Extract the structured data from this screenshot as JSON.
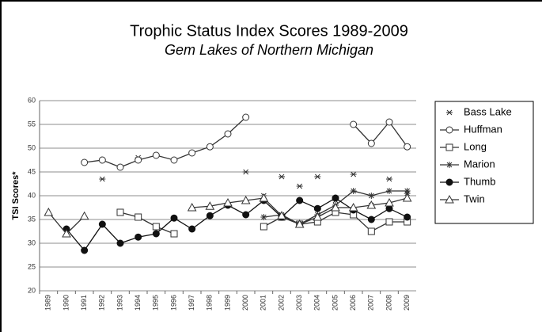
{
  "chart_data": {
    "type": "line",
    "title": "Trophic Status Index Scores 1989-2009",
    "subtitle": "Gem Lakes of Northern Michigan",
    "y_label": "TSI Scores*",
    "categories": [
      "1989",
      "1990",
      "1991",
      "1992",
      "1993",
      "1994",
      "1995",
      "1996",
      "1997",
      "1998",
      "1999",
      "2000",
      "2001",
      "2002",
      "2003",
      "2004",
      "2005",
      "2006",
      "2007",
      "2008",
      "2009"
    ],
    "ylim": [
      20,
      60
    ],
    "yticks": [
      20,
      25,
      30,
      35,
      40,
      45,
      50,
      55,
      60
    ],
    "grid": true,
    "legend": "right",
    "series": [
      {
        "name": "Bass Lake",
        "color": "#333333",
        "marker": "asterisk",
        "line": false,
        "values": [
          null,
          null,
          null,
          43.5,
          null,
          48,
          null,
          null,
          null,
          null,
          null,
          45,
          40,
          44,
          42,
          44,
          39,
          44.5,
          38,
          43.5,
          40.5
        ]
      },
      {
        "name": "Huffman",
        "color": "#333333",
        "marker": "circle-open",
        "line": true,
        "values": [
          null,
          null,
          47,
          47.5,
          46,
          47.5,
          48.5,
          47.5,
          49,
          50.3,
          53,
          56.5,
          null,
          null,
          null,
          null,
          null,
          55,
          51,
          55.5,
          50.3
        ]
      },
      {
        "name": "Long",
        "color": "#333333",
        "marker": "square-open",
        "line": true,
        "values": [
          null,
          null,
          null,
          null,
          36.5,
          35.5,
          33.5,
          32,
          null,
          null,
          null,
          null,
          33.5,
          35.5,
          34,
          34.5,
          36.5,
          36,
          32.5,
          34.5,
          34.5
        ]
      },
      {
        "name": "Marion",
        "color": "#333333",
        "marker": "star",
        "line": true,
        "values": [
          null,
          null,
          null,
          null,
          null,
          null,
          null,
          null,
          null,
          null,
          null,
          null,
          35.5,
          36,
          34,
          36,
          38,
          41,
          40,
          41,
          41
        ]
      },
      {
        "name": "Thumb",
        "color": "#111111",
        "marker": "circle-filled",
        "line": true,
        "values": [
          null,
          33,
          28.5,
          34,
          30,
          31.3,
          32,
          35.3,
          33,
          35.8,
          38,
          36,
          39,
          35.5,
          39,
          37.3,
          39.5,
          37,
          35,
          37.3,
          35.5
        ]
      },
      {
        "name": "Twin",
        "color": "#333333",
        "marker": "triangle-open",
        "line": true,
        "values": [
          36.5,
          32,
          35.7,
          null,
          null,
          null,
          null,
          null,
          37.5,
          37.8,
          38.5,
          39,
          39.5,
          35.8,
          34,
          35.5,
          37.5,
          37.5,
          38,
          38.5,
          39.5
        ]
      }
    ]
  }
}
